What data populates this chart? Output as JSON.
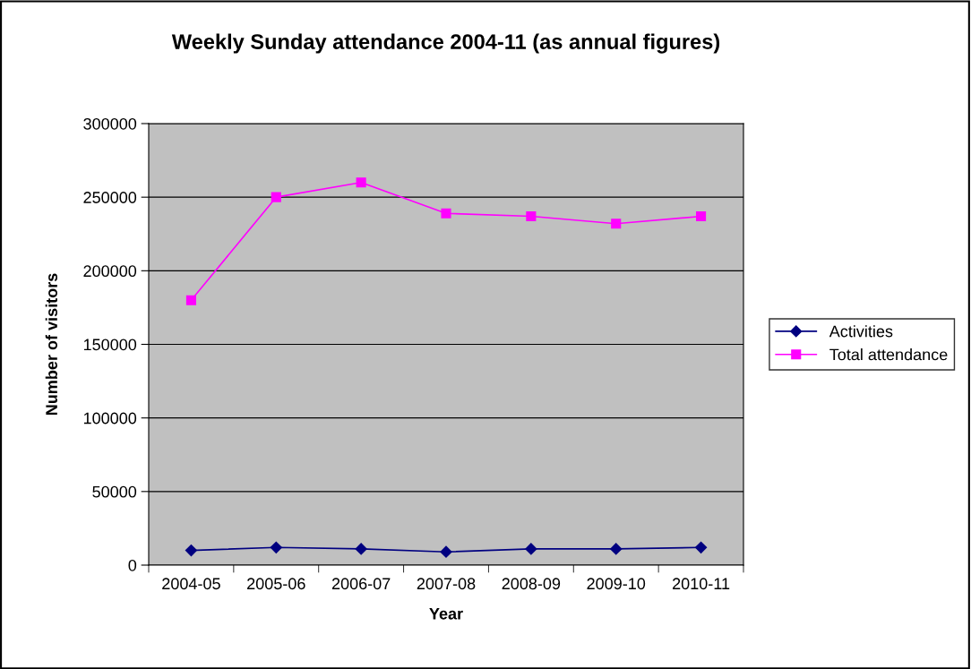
{
  "chart_data": {
    "type": "line",
    "title": "Weekly Sunday attendance 2004-11 (as annual figures)",
    "xlabel": "Year",
    "ylabel": "Number of visitors",
    "categories": [
      "2004-05",
      "2005-06",
      "2006-07",
      "2007-08",
      "2008-09",
      "2009-10",
      "2010-11"
    ],
    "series": [
      {
        "name": "Activities",
        "color": "#000080",
        "marker": "diamond",
        "values": [
          10000,
          12000,
          11000,
          9000,
          11000,
          11000,
          12000
        ]
      },
      {
        "name": "Total attendance",
        "color": "#ff00ff",
        "marker": "square",
        "values": [
          180000,
          250000,
          260000,
          239000,
          237000,
          232000,
          237000
        ]
      }
    ],
    "ylim": [
      0,
      300000
    ],
    "yticks": [
      0,
      50000,
      100000,
      150000,
      200000,
      250000,
      300000
    ],
    "grid": "y",
    "legend": "right",
    "line_style": "solid"
  }
}
